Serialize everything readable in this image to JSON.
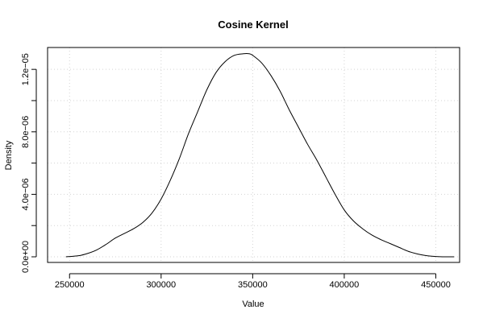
{
  "chart_data": {
    "type": "line",
    "title": "Cosine Kernel",
    "xlabel": "Value",
    "ylabel": "Density",
    "xlim": [
      238000,
      463000
    ],
    "ylim": [
      -3.6e-07,
      1.34e-05
    ],
    "grid": true,
    "x_ticks": [
      {
        "value": 250000,
        "label": "250000"
      },
      {
        "value": 300000,
        "label": "300000"
      },
      {
        "value": 350000,
        "label": "350000"
      },
      {
        "value": 400000,
        "label": "400000"
      },
      {
        "value": 450000,
        "label": "450000"
      }
    ],
    "y_ticks": [
      {
        "value": 0.0,
        "label": "0.0e+00"
      },
      {
        "value": 2e-06,
        "label": ""
      },
      {
        "value": 4e-06,
        "label": "4.0e−06"
      },
      {
        "value": 6e-06,
        "label": ""
      },
      {
        "value": 8e-06,
        "label": "8.0e−06"
      },
      {
        "value": 1e-05,
        "label": ""
      },
      {
        "value": 1.2e-05,
        "label": "1.2e−05"
      }
    ],
    "series": [
      {
        "x": [
          248000,
          255000,
          260000,
          265000,
          270000,
          275000,
          280000,
          285000,
          290000,
          295000,
          300000,
          305000,
          310000,
          315000,
          320000,
          325000,
          330000,
          335000,
          340000,
          345000,
          348000,
          350000,
          355000,
          360000,
          365000,
          370000,
          375000,
          380000,
          385000,
          390000,
          395000,
          400000,
          405000,
          410000,
          415000,
          420000,
          425000,
          430000,
          435000,
          440000,
          445000,
          450000,
          455000,
          460000
        ],
        "y": [
          0.0,
          7e-08,
          2.2e-07,
          4.5e-07,
          8e-07,
          1.2e-06,
          1.5e-06,
          1.8e-06,
          2.2e-06,
          2.8e-06,
          3.7e-06,
          4.9e-06,
          6.3e-06,
          7.9e-06,
          9.3e-06,
          1.07e-05,
          1.18e-05,
          1.25e-05,
          1.29e-05,
          1.3e-05,
          1.3e-05,
          1.29e-05,
          1.24e-05,
          1.16e-05,
          1.06e-05,
          9.4e-06,
          8.3e-06,
          7.2e-06,
          6.2e-06,
          5.1e-06,
          4e-06,
          3e-06,
          2.3e-06,
          1.8e-06,
          1.4e-06,
          1.1e-06,
          8.5e-07,
          6e-07,
          3.5e-07,
          1.8e-07,
          7e-08,
          2e-08,
          0.0,
          0.0
        ]
      }
    ]
  }
}
